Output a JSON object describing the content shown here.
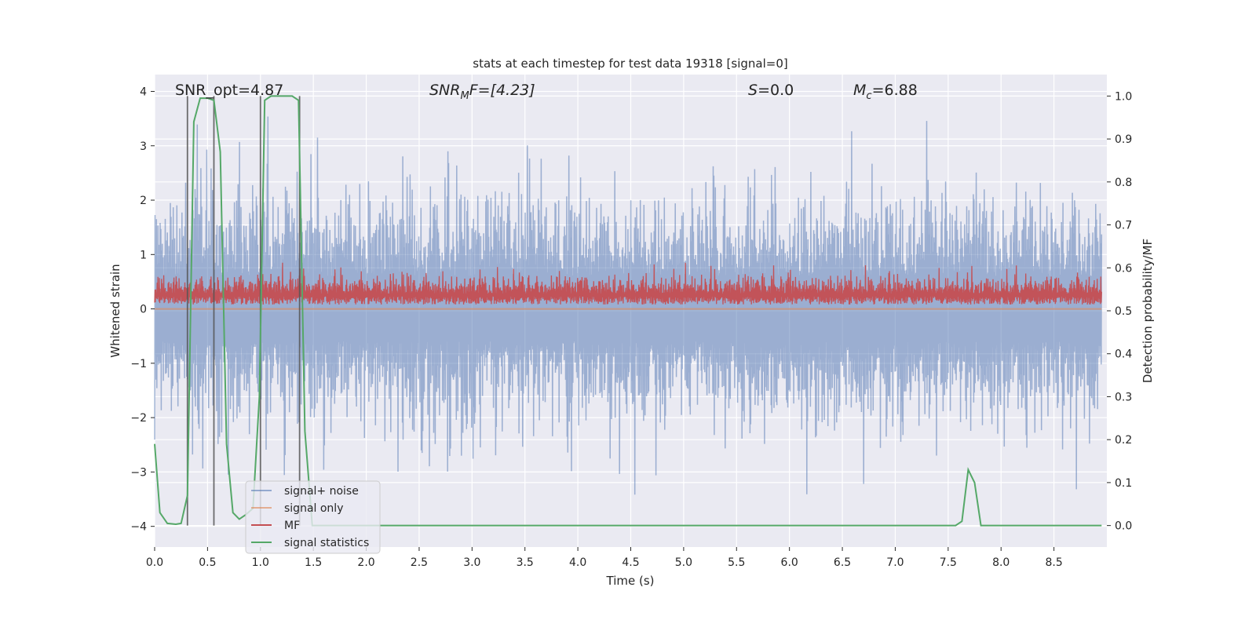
{
  "chart_data": {
    "type": "line",
    "title": "stats at each timestep for test data 19318 [signal=0]",
    "xlabel": "Time (s)",
    "ylabel": "Whitened strain",
    "ylabel_right": "Detection probability/MF",
    "xlim": [
      0,
      9.0
    ],
    "ylim": [
      -4.38,
      4.31
    ],
    "ylim_right": [
      -0.05,
      1.05
    ],
    "x_ticks": [
      "0.0",
      "0.5",
      "1.0",
      "1.5",
      "2.0",
      "2.5",
      "3.0",
      "3.5",
      "4.0",
      "4.5",
      "5.0",
      "5.5",
      "6.0",
      "6.5",
      "7.0",
      "7.5",
      "8.0",
      "8.5"
    ],
    "y_ticks": [
      "−4",
      "−3",
      "−2",
      "−1",
      "0",
      "1",
      "2",
      "3",
      "4"
    ],
    "y_ticks_right": [
      "0.0",
      "0.1",
      "0.2",
      "0.3",
      "0.4",
      "0.5",
      "0.6",
      "0.7",
      "0.8",
      "0.9",
      "1.0"
    ],
    "grid": true,
    "background": "#EAEAF2",
    "legend_position": "lower-left",
    "annotations": {
      "snr_opt": "SNR_opt=4.87",
      "snr_mf_main": "SNR",
      "snr_mf_sub": "M",
      "snr_mf_rest": "F=[4.23]",
      "s_main": "S",
      "s_rest": "=0.0",
      "mc_main": "M",
      "mc_sub": "c",
      "mc_rest": "=6.88"
    },
    "series": [
      {
        "name": "signal+ noise",
        "color": "#4C72B0",
        "axis": "left",
        "range_typical": [
          -1.6,
          1.5
        ],
        "range_extreme": [
          -4.0,
          3.95
        ]
      },
      {
        "name": "signal only",
        "color": "#DD8452",
        "axis": "left",
        "values_constant": 0.0
      },
      {
        "name": "MF",
        "color": "#C44E52",
        "axis": "left",
        "range_typical": [
          0.05,
          0.85
        ]
      },
      {
        "name": "signal statistics",
        "color": "#55A868",
        "axis": "right",
        "x": [
          0.0,
          0.05,
          0.12,
          0.2,
          0.25,
          0.31,
          0.37,
          0.43,
          0.5,
          0.56,
          0.62,
          0.68,
          0.74,
          0.8,
          0.86,
          0.93,
          0.99,
          1.04,
          1.1,
          1.2,
          1.3,
          1.36,
          1.42,
          1.49,
          1.55,
          7.5,
          7.57,
          7.63,
          7.69,
          7.75,
          7.81,
          7.87,
          8.95
        ],
        "y": [
          0.19,
          0.03,
          0.005,
          0.003,
          0.005,
          0.07,
          0.94,
          0.995,
          0.995,
          0.99,
          0.87,
          0.19,
          0.03,
          0.015,
          0.025,
          0.04,
          0.3,
          0.99,
          1.0,
          1.0,
          1.0,
          0.99,
          0.22,
          0.0,
          0.0,
          0.0,
          0.0,
          0.01,
          0.13,
          0.1,
          0.0,
          0.0,
          0.0
        ]
      }
    ],
    "vertical_markers": {
      "color": "#555555",
      "x": [
        0.31,
        0.56,
        1.0,
        1.37
      ],
      "y_right_span": [
        0.0,
        1.0
      ]
    }
  }
}
